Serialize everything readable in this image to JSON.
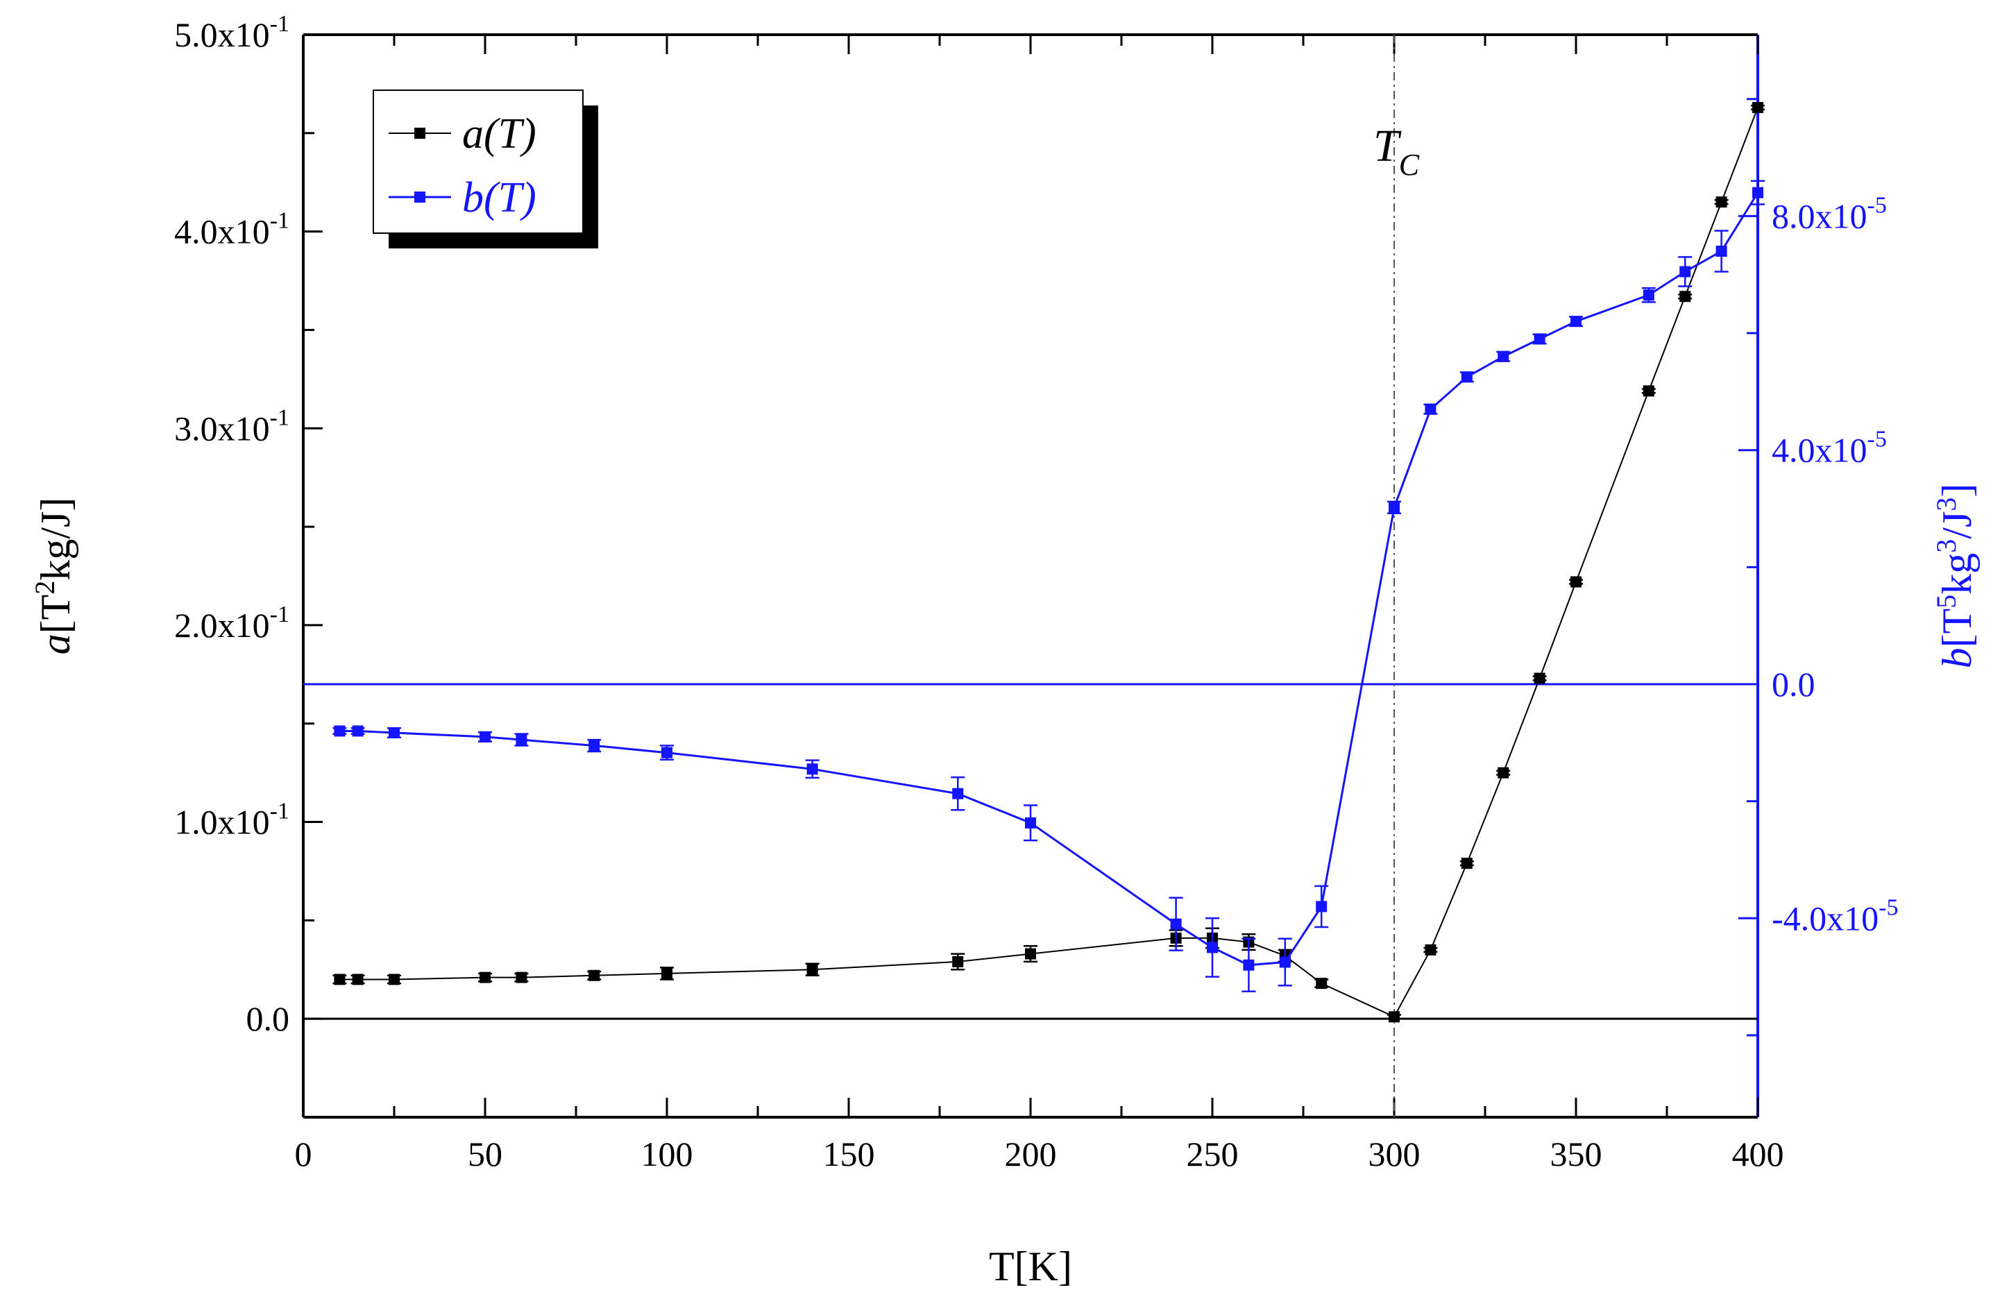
{
  "chart_data": {
    "type": "line",
    "title": "",
    "xlabel": "T[K]",
    "x_ticks": [
      "0",
      "50",
      "100",
      "150",
      "200",
      "250",
      "300",
      "350",
      "400"
    ],
    "xlim": [
      0,
      400
    ],
    "ylabel_left": {
      "var": "a",
      "text": "[T",
      "sup1": "2",
      "text2": "kg/J]"
    },
    "ylabel_right": {
      "var": "b",
      "text": "[T",
      "sup1": "5",
      "text2": "kg",
      "sup2": "3",
      "text3": "/J",
      "sup3": "3",
      "text4": "]"
    },
    "ylim_left": [
      -0.05,
      0.5
    ],
    "ylim_right": [
      -7.4e-05,
      0.000111
    ],
    "left_ticks": [
      {
        "value": 0.0,
        "base": "0.0",
        "exp": ""
      },
      {
        "value": 0.1,
        "base": "1.0x10",
        "exp": "-1"
      },
      {
        "value": 0.2,
        "base": "2.0x10",
        "exp": "-1"
      },
      {
        "value": 0.3,
        "base": "3.0x10",
        "exp": "-1"
      },
      {
        "value": 0.4,
        "base": "4.0x10",
        "exp": "-1"
      },
      {
        "value": 0.5,
        "base": "5.0x10",
        "exp": "-1"
      }
    ],
    "right_ticks": [
      {
        "value": -4e-05,
        "base": "-4.0x10",
        "exp": "-5"
      },
      {
        "value": 0.0,
        "base": "0.0",
        "exp": ""
      },
      {
        "value": 4e-05,
        "base": "4.0x10",
        "exp": "-5"
      },
      {
        "value": 8e-05,
        "base": "8.0x10",
        "exp": "-5"
      }
    ],
    "tc_marker": {
      "x": 300,
      "label": "T",
      "sub": "C"
    },
    "legend": {
      "position": "top-left"
    },
    "series": [
      {
        "name": "a(T)",
        "axis": "left",
        "color": "#000000",
        "x": [
          10,
          15,
          25,
          50,
          60,
          80,
          100,
          140,
          180,
          200,
          240,
          250,
          260,
          270,
          280,
          300,
          310,
          320,
          330,
          340,
          350,
          370,
          380,
          390,
          400
        ],
        "y": [
          0.02,
          0.02,
          0.02,
          0.021,
          0.021,
          0.022,
          0.023,
          0.025,
          0.029,
          0.033,
          0.041,
          0.041,
          0.039,
          0.032,
          0.018,
          0.001,
          0.035,
          0.079,
          0.125,
          0.173,
          0.222,
          0.319,
          0.367,
          0.415,
          0.463
        ],
        "err": [
          0.002,
          0.002,
          0.002,
          0.002,
          0.002,
          0.002,
          0.003,
          0.003,
          0.004,
          0.004,
          0.004,
          0.005,
          0.004,
          0.003,
          0.002,
          0.001,
          0.001,
          0.001,
          0.001,
          0.001,
          0.001,
          0.001,
          0.001,
          0.001,
          0.001
        ]
      },
      {
        "name": "b(T)",
        "axis": "right",
        "color": "#1414ff",
        "x": [
          10,
          15,
          25,
          50,
          60,
          80,
          100,
          140,
          180,
          200,
          240,
          250,
          260,
          270,
          280,
          300,
          310,
          320,
          330,
          340,
          350,
          370,
          380,
          390,
          400
        ],
        "y": [
          -8e-06,
          -8e-06,
          -8.3e-06,
          -9e-06,
          -9.5e-06,
          -1.05e-05,
          -1.17e-05,
          -1.45e-05,
          -1.87e-05,
          -2.37e-05,
          -4.1e-05,
          -4.5e-05,
          -4.8e-05,
          -4.75e-05,
          -3.8e-05,
          3.02e-05,
          4.7e-05,
          5.25e-05,
          5.6e-05,
          5.9e-05,
          6.2e-05,
          6.65e-05,
          7.05e-05,
          7.4e-05,
          8.4e-05
        ],
        "err": [
          5e-07,
          5e-07,
          8e-07,
          8e-07,
          1e-06,
          1e-06,
          1.2e-06,
          1.5e-06,
          2.8e-06,
          3e-06,
          4.5e-06,
          5e-06,
          4.5e-06,
          4e-06,
          3.5e-06,
          1e-06,
          8e-07,
          8e-07,
          8e-07,
          8e-07,
          8e-07,
          1.2e-06,
          2.5e-06,
          3.5e-06,
          2e-06
        ]
      }
    ]
  }
}
